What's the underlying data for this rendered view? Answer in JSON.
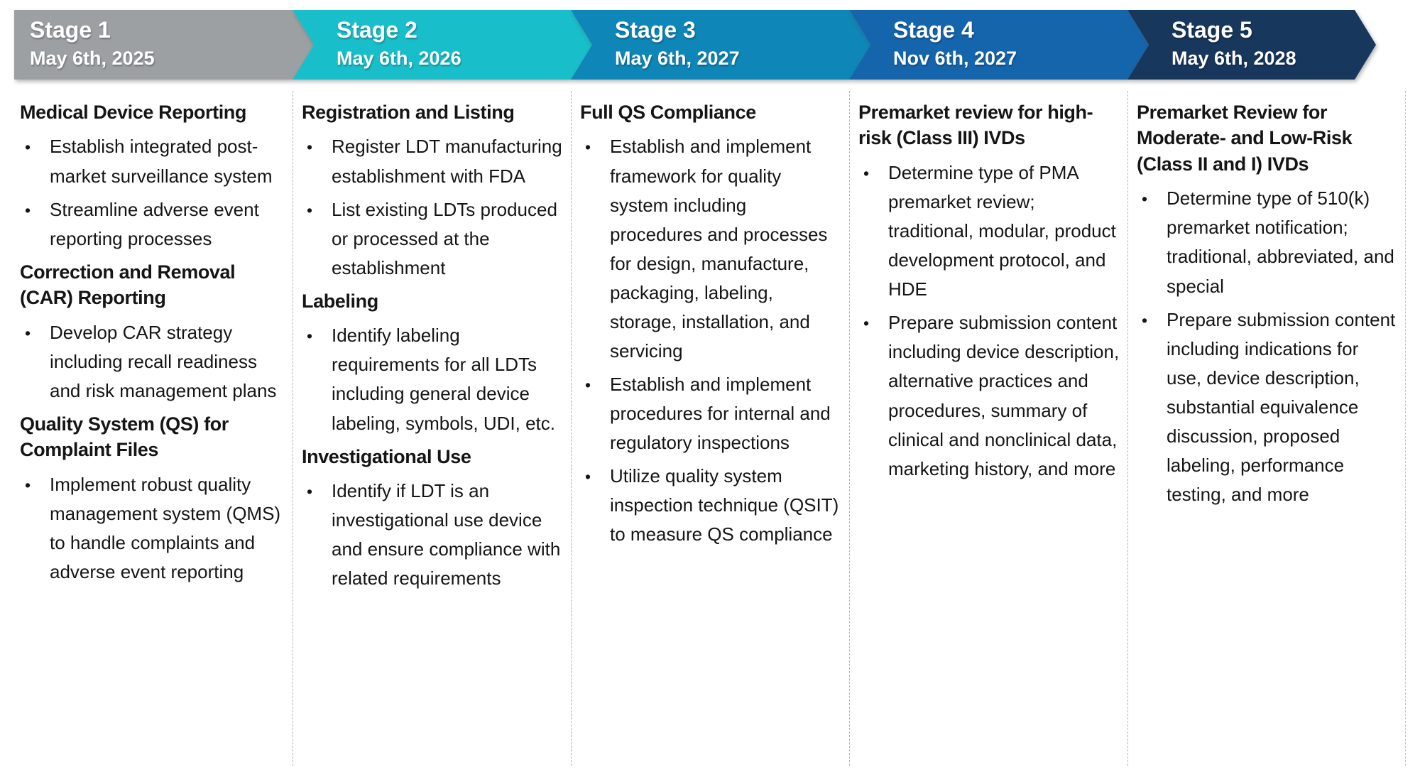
{
  "stages": [
    {
      "label": "Stage 1",
      "date": "May 6th, 2025",
      "color": "#9CA0A3",
      "sections": [
        {
          "heading": "Medical Device Reporting",
          "bullets": [
            "Establish integrated post-market surveillance system",
            "Streamline adverse event reporting processes"
          ]
        },
        {
          "heading": "Correction and Removal (CAR) Reporting",
          "bullets": [
            "Develop CAR strategy including recall readiness and risk management plans"
          ]
        },
        {
          "heading": "Quality System (QS) for Complaint Files",
          "bullets": [
            "Implement robust quality management system (QMS) to handle complaints and adverse event reporting"
          ]
        }
      ]
    },
    {
      "label": "Stage 2",
      "date": "May 6th, 2026",
      "color": "#18BEC9",
      "sections": [
        {
          "heading": "Registration and Listing",
          "bullets": [
            "Register LDT manufacturing establishment with FDA",
            "List existing LDTs produced or processed at the establishment"
          ]
        },
        {
          "heading": "Labeling",
          "bullets": [
            "Identify labeling requirements for all LDTs including general device labeling, symbols, UDI, etc."
          ]
        },
        {
          "heading": "Investigational Use",
          "bullets": [
            "Identify if LDT is an investigational use device and ensure compliance with related requirements"
          ]
        }
      ]
    },
    {
      "label": "Stage 3",
      "date": "May 6th, 2027",
      "color": "#0E86B7",
      "sections": [
        {
          "heading": "Full QS Compliance",
          "bullets": [
            "Establish and implement framework for quality system including procedures and processes for design, manufacture, packaging, labeling, storage, installation, and servicing",
            "Establish and implement procedures for internal and regulatory inspections",
            "Utilize quality system inspection technique (QSIT) to measure QS compliance"
          ]
        }
      ]
    },
    {
      "label": "Stage 4",
      "date": "Nov 6th, 2027",
      "color": "#1565AD",
      "sections": [
        {
          "heading": "Premarket review for high-risk (Class III) IVDs",
          "bullets": [
            "Determine type of PMA premarket review; traditional, modular, product development protocol, and HDE",
            "Prepare submission content including device description, alternative practices and procedures, summary of clinical and nonclinical data, marketing history, and more"
          ]
        }
      ]
    },
    {
      "label": "Stage 5",
      "date": "May 6th, 2028",
      "color": "#17375D",
      "sections": [
        {
          "heading": "Premarket Review for Moderate- and Low-Risk (Class II and I) IVDs",
          "bullets": [
            "Determine type of 510(k) premarket notification; traditional, abbreviated, and special",
            "Prepare submission content including indications for use, device description, substantial equivalence discussion, proposed labeling, performance testing, and more"
          ]
        }
      ]
    }
  ],
  "bullet_glyph": "•"
}
